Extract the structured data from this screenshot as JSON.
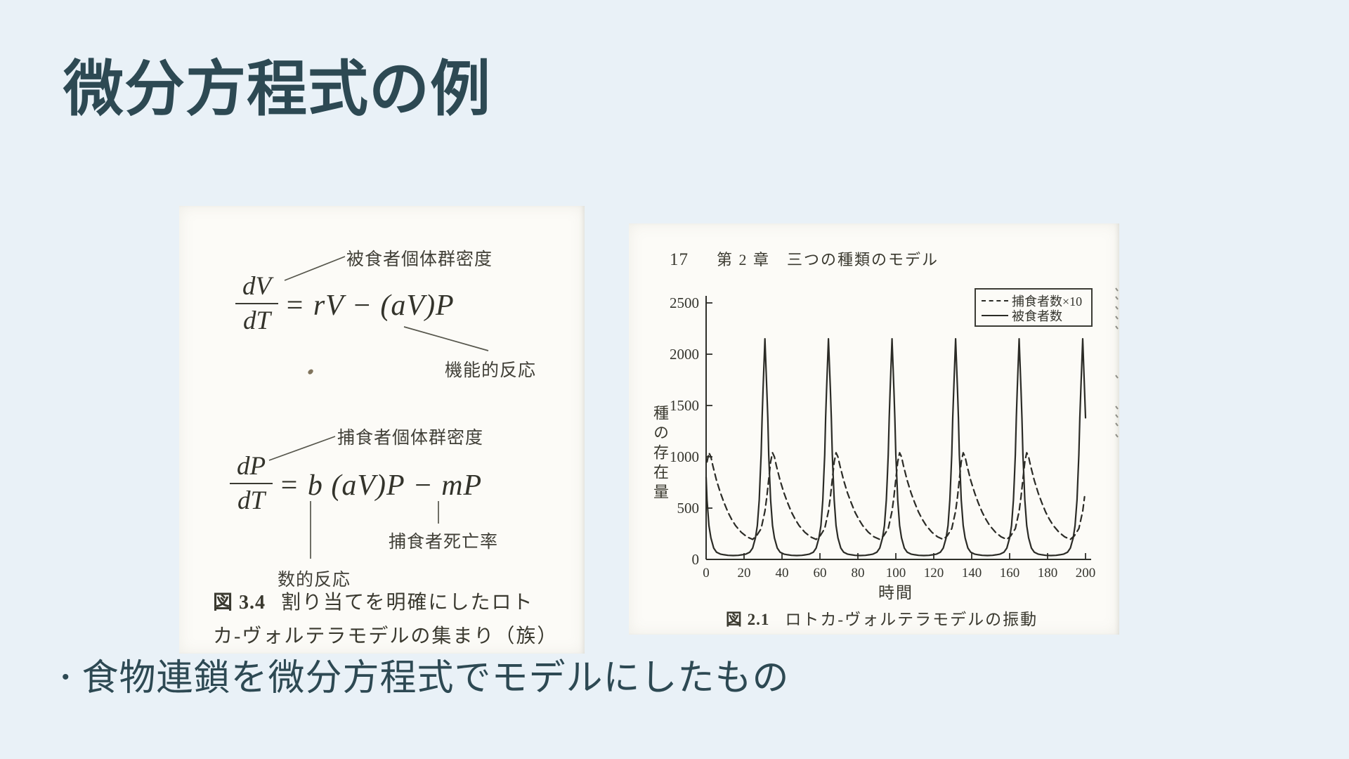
{
  "slide": {
    "title": "微分方程式の例",
    "bullet": {
      "marker": "•",
      "text": "食物連鎖を微分方程式でモデルにしたもの"
    },
    "colors": {
      "background": "#e9f1f7",
      "text_accent": "#2d4953",
      "paper": "#fcfbf7",
      "ink": "#3a3a32"
    }
  },
  "figure_left": {
    "annotations": {
      "prey_density": "被食者個体群密度",
      "functional_response": "機能的反応",
      "predator_density": "捕食者個体群密度",
      "numerical_response": "数的反応",
      "predator_mortality": "捕食者死亡率"
    },
    "equation_prey": {
      "numerator": "dV",
      "denominator": "dT",
      "rhs": "= rV − (aV)P"
    },
    "equation_predator": {
      "numerator": "dP",
      "denominator": "dT",
      "rhs": "= b (aV)P − mP"
    },
    "caption": {
      "figure_label": "図 3.4",
      "line1": "割り当てを明確にしたロト",
      "line2": "カ-ヴォルテラモデルの集まり（族）"
    }
  },
  "figure_right": {
    "page_number": "17",
    "chapter_header": "第 2 章　三つの種類のモデル",
    "caption": {
      "figure_label": "図 2.1",
      "text": "ロトカ-ヴォルテラモデルの振動"
    }
  },
  "chart_data": {
    "type": "line",
    "title": "図 2.1 ロトカ-ヴォルテラモデルの振動",
    "xlabel": "時間",
    "ylabel": "種の存在量",
    "xlim": [
      0,
      200
    ],
    "ylim": [
      0,
      2500
    ],
    "xticks": [
      0,
      20,
      40,
      60,
      80,
      100,
      120,
      140,
      160,
      180,
      200
    ],
    "yticks": [
      0,
      500,
      1000,
      1500,
      2000,
      2500
    ],
    "grid": false,
    "legend_position": "top-right",
    "series": [
      {
        "name": "捕食者数×10",
        "style": "dashed",
        "period": 33.5,
        "peak_value": 1040,
        "peak_times": [
          1.5,
          35,
          68.5,
          102,
          135.5,
          169,
          202.5
        ],
        "cycle_points": [
          [
            -8.4,
            230
          ],
          [
            -6,
            300
          ],
          [
            -4,
            470
          ],
          [
            -3,
            610
          ],
          [
            -2,
            780
          ],
          [
            -1,
            950
          ],
          [
            0,
            1040
          ],
          [
            1,
            1000
          ],
          [
            2,
            915
          ],
          [
            4,
            770
          ],
          [
            6,
            650
          ],
          [
            8,
            550
          ],
          [
            10,
            460
          ],
          [
            12,
            390
          ],
          [
            14,
            330
          ],
          [
            17,
            265
          ],
          [
            20,
            220
          ],
          [
            23,
            195
          ],
          [
            25.1,
            230
          ]
        ]
      },
      {
        "name": "被食者数",
        "style": "solid",
        "period": 33.5,
        "peak_value": 2150,
        "peak_times": [
          -2.5,
          31,
          64.5,
          98,
          131.5,
          165,
          198.5
        ],
        "cycle_points": [
          [
            -16.75,
            38
          ],
          [
            -14,
            40
          ],
          [
            -12,
            45
          ],
          [
            -10,
            52
          ],
          [
            -8,
            70
          ],
          [
            -6.5,
            110
          ],
          [
            -5,
            210
          ],
          [
            -4,
            330
          ],
          [
            -3,
            580
          ],
          [
            -2.5,
            800
          ],
          [
            -2,
            1020
          ],
          [
            -1.5,
            1380
          ],
          [
            -1,
            1650
          ],
          [
            0,
            2150
          ],
          [
            1,
            1650
          ],
          [
            1.5,
            1380
          ],
          [
            2,
            1020
          ],
          [
            2.5,
            800
          ],
          [
            3,
            580
          ],
          [
            4,
            330
          ],
          [
            5,
            210
          ],
          [
            6.5,
            110
          ],
          [
            8,
            70
          ],
          [
            10,
            52
          ],
          [
            12,
            45
          ],
          [
            14,
            40
          ],
          [
            16.75,
            38
          ]
        ]
      }
    ]
  }
}
